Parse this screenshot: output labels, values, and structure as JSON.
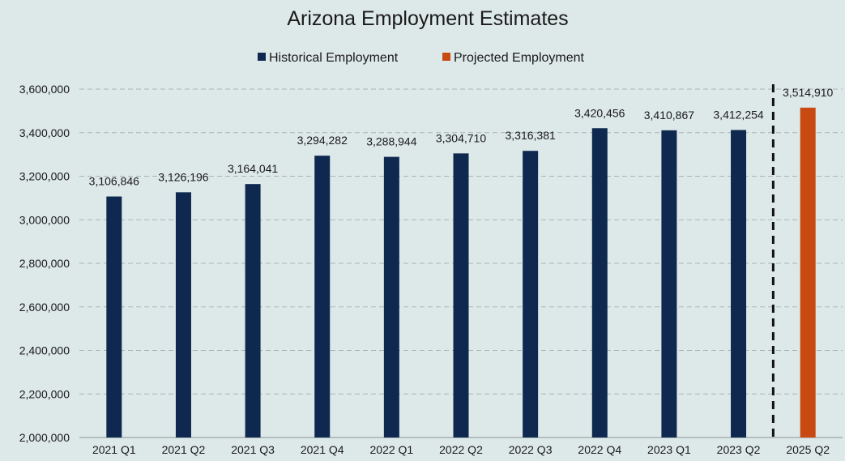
{
  "chart_data": {
    "type": "bar",
    "title": "Arizona Employment Estimates",
    "xlabel": "",
    "ylabel": "",
    "categories": [
      "2021 Q1",
      "2021 Q2",
      "2021 Q3",
      "2021 Q4",
      "2022 Q1",
      "2022 Q2",
      "2022 Q3",
      "2022 Q4",
      "2023 Q1",
      "2023 Q2",
      "2025 Q2"
    ],
    "series": [
      {
        "name": "Historical Employment",
        "color": "#0f2850",
        "values": [
          3106846,
          3126196,
          3164041,
          3294282,
          3288944,
          3304710,
          3316381,
          3420456,
          3410867,
          3412254,
          null
        ],
        "labels": [
          "3,106,846",
          "3,126,196",
          "3,164,041",
          "3,294,282",
          "3,288,944",
          "3,304,710",
          "3,316,381",
          "3,420,456",
          "3,410,867",
          "3,412,254",
          ""
        ]
      },
      {
        "name": "Projected Employment",
        "color": "#c84a12",
        "values": [
          null,
          null,
          null,
          null,
          null,
          null,
          null,
          null,
          null,
          null,
          3514910
        ],
        "labels": [
          "",
          "",
          "",
          "",
          "",
          "",
          "",
          "",
          "",
          "",
          "3,514,910"
        ]
      }
    ],
    "ylim": [
      2000000,
      3600000
    ],
    "yticks": [
      2000000,
      2200000,
      2400000,
      2600000,
      2800000,
      3000000,
      3200000,
      3400000,
      3600000
    ],
    "ytick_labels": [
      "2,000,000",
      "2,200,000",
      "2,400,000",
      "2,600,000",
      "2,800,000",
      "3,000,000",
      "3,200,000",
      "3,400,000",
      "3,600,000"
    ],
    "grid": true,
    "legend_position": "top-center",
    "divider_between": [
      "2023 Q2",
      "2025 Q2"
    ]
  }
}
